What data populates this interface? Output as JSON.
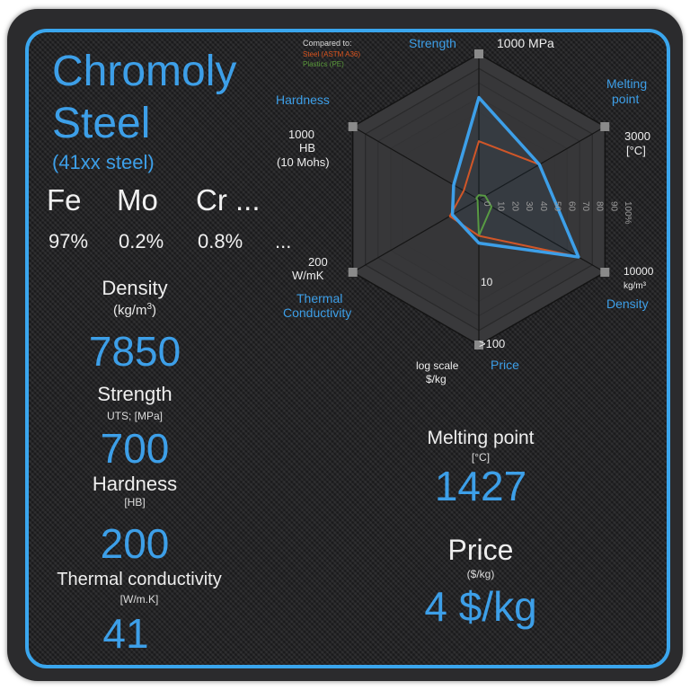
{
  "material": {
    "name_line1": "Chromoly",
    "name_line2": "Steel",
    "subtitle": "(41xx steel)",
    "elements": [
      {
        "symbol": "Fe",
        "percent": "97%"
      },
      {
        "symbol": "Mo",
        "percent": "0.2%"
      },
      {
        "symbol": "Cr ...",
        "percent": "0.8%"
      }
    ],
    "more_percent": "..."
  },
  "properties": {
    "density": {
      "label": "Density",
      "unit": "(kg/m",
      "unit_sup": "3",
      "unit_close": ")",
      "value": "7850"
    },
    "strength": {
      "label": "Strength",
      "unit": "UTS; [MPa]",
      "value": "700"
    },
    "hardness": {
      "label": "Hardness",
      "unit": "[HB]",
      "value": "200"
    },
    "thermal": {
      "label": "Thermal conductivity",
      "unit": "[W/m.K]",
      "value": "41"
    },
    "melting": {
      "label": "Melting point",
      "unit": "[°C]",
      "value": "1427"
    },
    "price": {
      "label": "Price",
      "unit": "($/kg)",
      "value": "4 $/kg"
    }
  },
  "chart_data": {
    "type": "radar",
    "axes": [
      "Strength",
      "Melting point",
      "Density",
      "Price",
      "Thermal Conductivity",
      "Hardness"
    ],
    "axis_max_labels": {
      "strength": "1000 MPa",
      "melting": [
        "3000",
        "[°C]"
      ],
      "density": [
        "10000",
        "kg/m³"
      ],
      "price": ">100",
      "thermal": [
        "200",
        "W/mK"
      ],
      "hardness": [
        "1000",
        "HB",
        "(10 Mohs)"
      ]
    },
    "price_scale": [
      "log scale",
      "$/kg"
    ],
    "price_mid_tick": "10",
    "rings_percent": [
      0,
      10,
      20,
      30,
      40,
      50,
      60,
      70,
      80,
      90,
      100
    ],
    "ring_tick_labels": [
      "0",
      "10",
      "20",
      "30",
      "40",
      "50",
      "60",
      "70",
      "80",
      "90",
      "100%"
    ],
    "legend_title": "Compared to:",
    "series": [
      {
        "name": "Chromoly Steel",
        "color": "#3d9fe8",
        "values": [
          70,
          48,
          79,
          30,
          21,
          20
        ]
      },
      {
        "name": "Steel (ASTM A36)",
        "color": "#d9531e",
        "values": [
          40,
          48,
          79,
          25,
          23,
          12
        ]
      },
      {
        "name": "Plastics (PE)",
        "color": "#5a9a3a",
        "values": [
          3,
          5,
          10,
          25,
          1,
          2
        ]
      }
    ],
    "legend_placement": "top-left"
  }
}
